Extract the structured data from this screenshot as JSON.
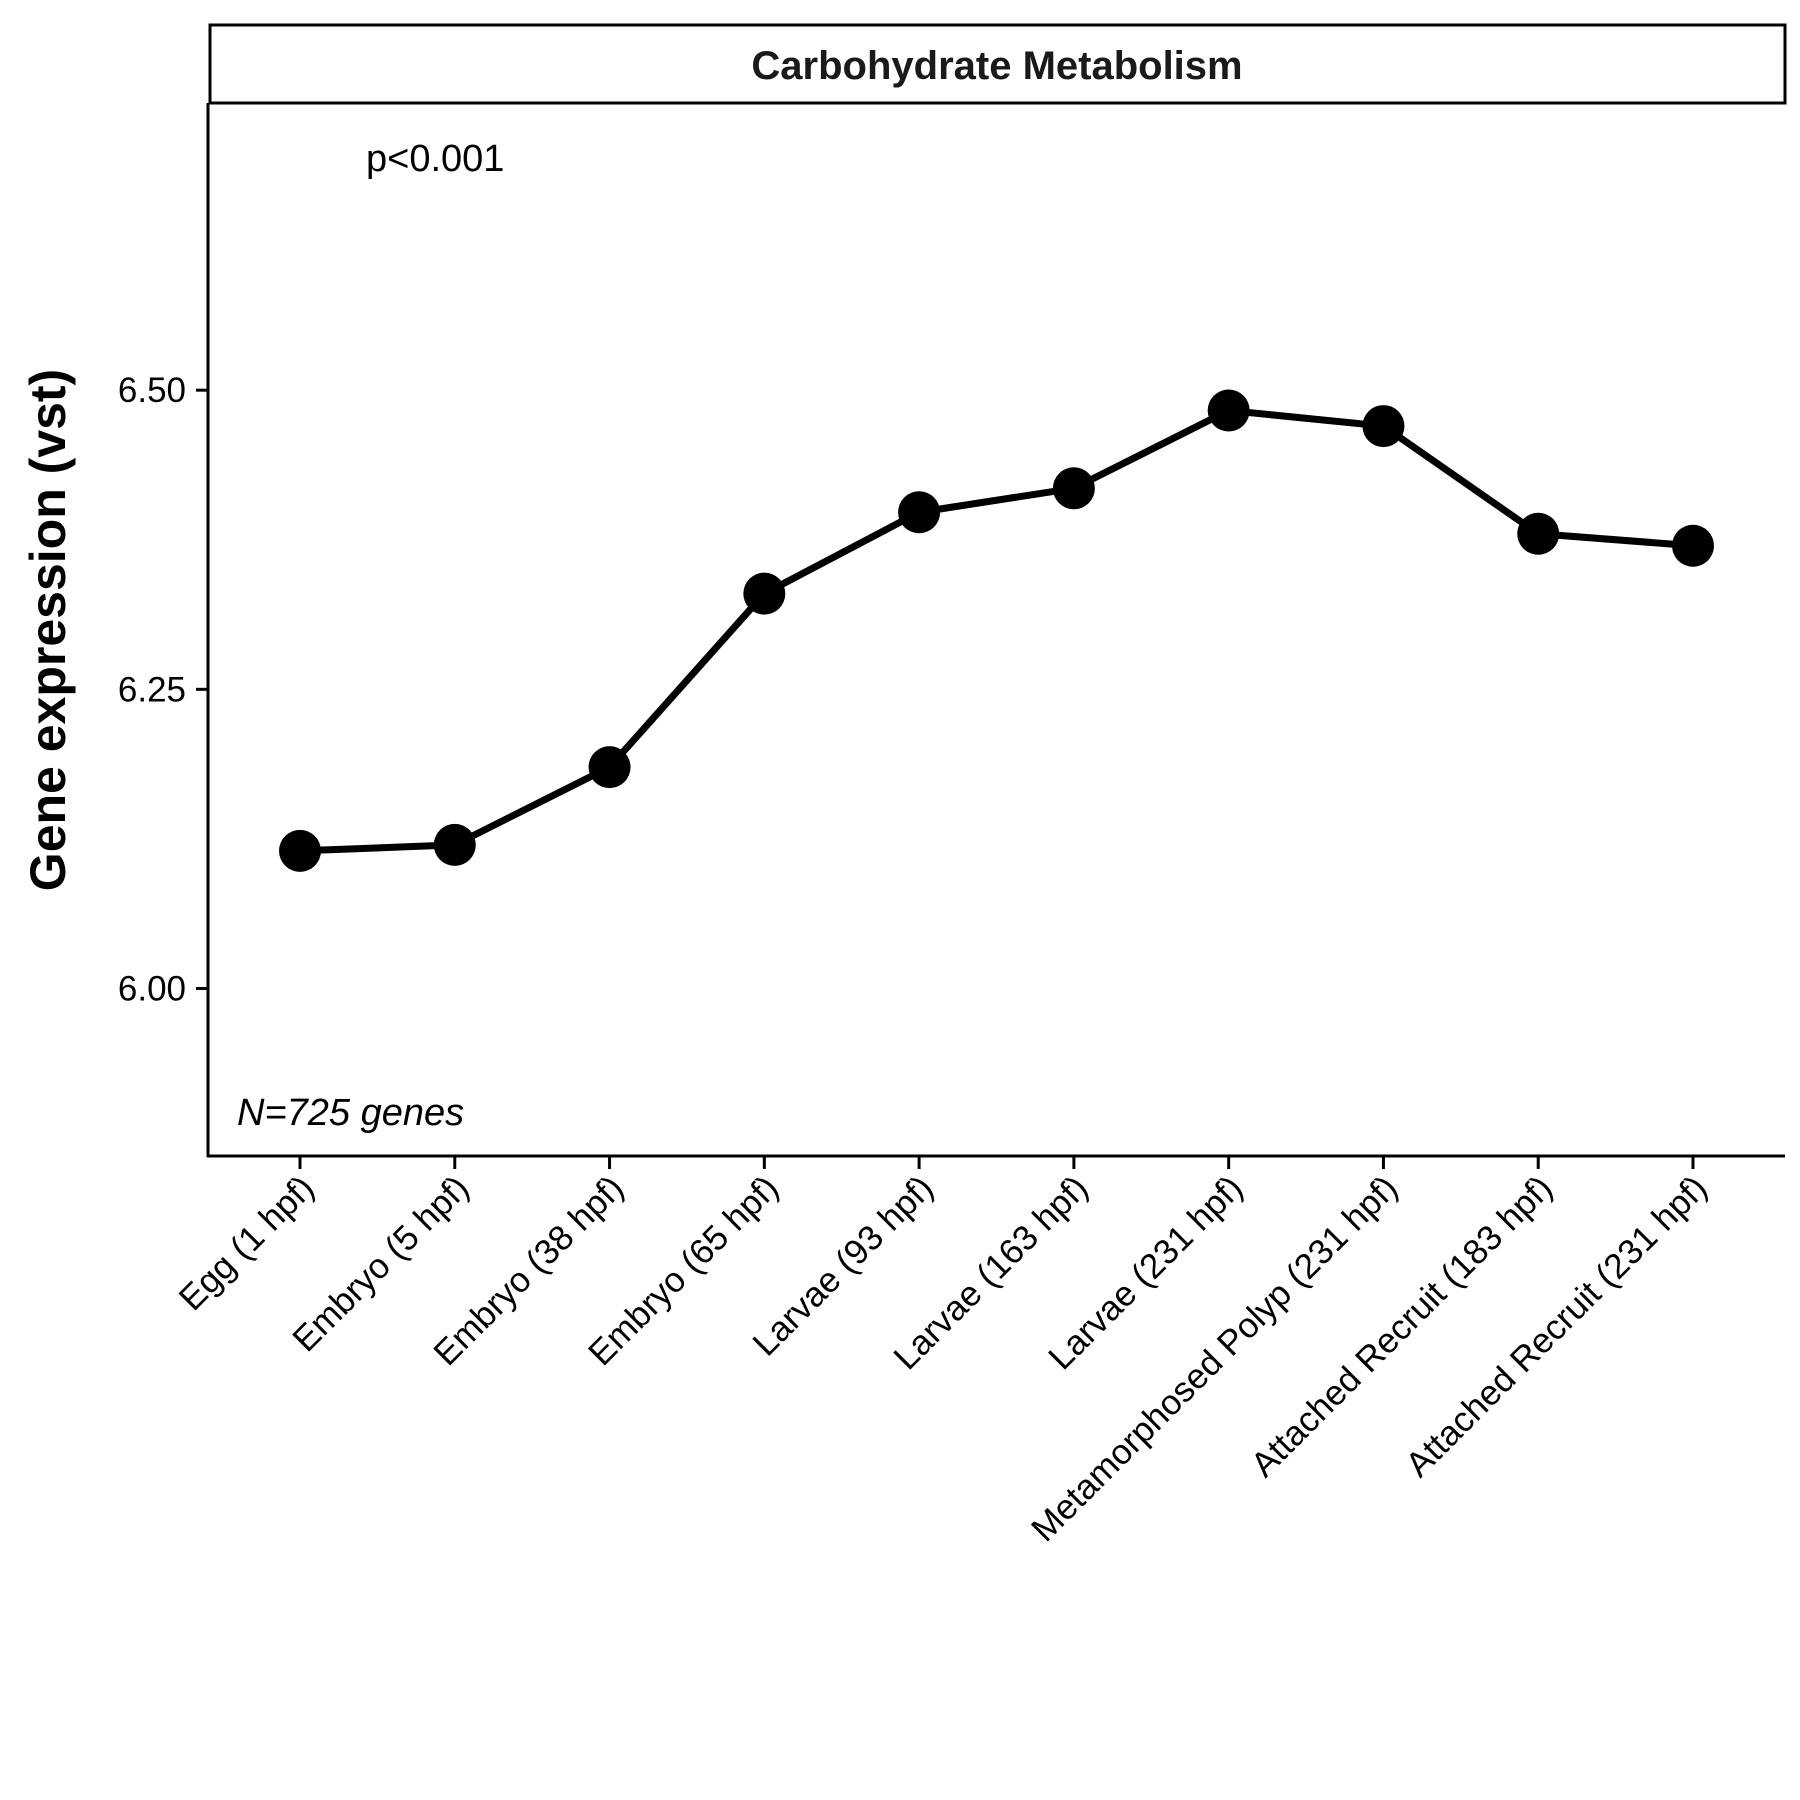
{
  "chart_data": {
    "type": "line",
    "title": "Carbohydrate Metabolism",
    "xlabel": "",
    "ylabel": "Gene expression (vst)",
    "ylim": [
      5.86,
      6.74
    ],
    "yticks": [
      6.0,
      6.25,
      6.5
    ],
    "ytick_labels": [
      "6.00",
      "6.25",
      "6.50"
    ],
    "grid": false,
    "legend": "none",
    "categories": [
      "Egg (1 hpf)",
      "Embryo (5 hpf)",
      "Embryo (38 hpf)",
      "Embryo (65 hpf)",
      "Larvae (93 hpf)",
      "Larvae (163 hpf)",
      "Larvae (231 hpf)",
      "Metamorphosed Polyp (231 hpf)",
      "Attached Recruit (183 hpf)",
      "Attached Recruit (231 hpf)"
    ],
    "series": [
      {
        "values": [
          6.115,
          6.12,
          6.185,
          6.33,
          6.398,
          6.418,
          6.483,
          6.47,
          6.38,
          6.37
        ],
        "color": "#000000"
      }
    ],
    "annotations": {
      "p_value": "p<0.001",
      "n_genes": "N=725 genes"
    }
  }
}
